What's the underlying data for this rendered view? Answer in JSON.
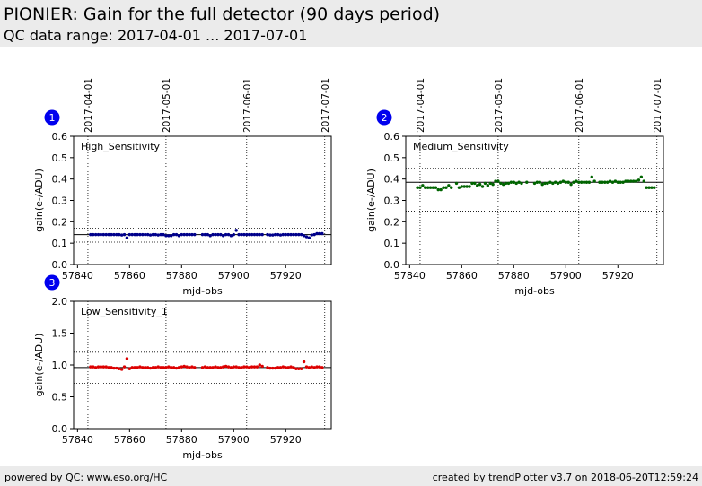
{
  "header": {
    "title": "PIONIER: Gain for the full detector (90 days period)",
    "subtitle": "QC data range: 2017-04-01 ... 2017-07-01"
  },
  "footer": {
    "left": "powered by QC: www.eso.org/HC",
    "right": "created by trendPlotter v3.7 on 2018-06-20T12:59:24"
  },
  "colors": {
    "badge": "#0000ee",
    "high": "#00008b",
    "medium": "#006400",
    "low": "#dd0000"
  },
  "chart_data": [
    {
      "type": "scatter",
      "badge": "1",
      "label": "High_Sensitivity",
      "xlabel": "mjd-obs",
      "ylabel": "gain(e-/ADU)",
      "xlim": [
        57838.5,
        57937.5
      ],
      "ylim": [
        0.0,
        0.6
      ],
      "xticks": [
        57840,
        57860,
        57880,
        57900,
        57920
      ],
      "yticks": [
        0.0,
        0.1,
        0.2,
        0.3,
        0.4,
        0.5,
        0.6
      ],
      "ytick_labels": [
        "0.0",
        "0.1",
        "0.2",
        "0.3",
        "0.4",
        "0.5",
        "0.6"
      ],
      "top_axis": [
        {
          "x": 57844,
          "label": "2017-04-01"
        },
        {
          "x": 57874,
          "label": "2017-05-01"
        },
        {
          "x": 57905,
          "label": "2017-06-01"
        },
        {
          "x": 57935,
          "label": "2017-07-01"
        }
      ],
      "reference_line": 0.14,
      "threshold_lines": [
        0.105,
        0.17
      ],
      "grid": "vertical dotted at month boundaries",
      "color_key": "high",
      "series": [
        {
          "x": [
            57845,
            57846,
            57847,
            57848,
            57849,
            57850,
            57851,
            57852,
            57853,
            57854,
            57855,
            57856,
            57857,
            57858,
            57859,
            57860,
            57861,
            57862,
            57863,
            57864,
            57865,
            57866,
            57867,
            57868,
            57869,
            57870,
            57871,
            57872,
            57873,
            57874,
            57875,
            57876,
            57877,
            57878,
            57879,
            57880,
            57881,
            57882,
            57883,
            57884,
            57885,
            57888,
            57889,
            57890,
            57891,
            57892,
            57893,
            57894,
            57895,
            57896,
            57897,
            57898,
            57899,
            57900,
            57901,
            57902,
            57903,
            57904,
            57905,
            57906,
            57907,
            57908,
            57909,
            57910,
            57911,
            57913,
            57914,
            57915,
            57916,
            57917,
            57918,
            57919,
            57920,
            57921,
            57922,
            57923,
            57924,
            57925,
            57926,
            57927,
            57928,
            57929,
            57930,
            57931,
            57932,
            57933,
            57934
          ],
          "y": [
            0.14,
            0.14,
            0.14,
            0.14,
            0.14,
            0.14,
            0.14,
            0.14,
            0.14,
            0.14,
            0.14,
            0.14,
            0.138,
            0.14,
            0.125,
            0.14,
            0.14,
            0.14,
            0.14,
            0.14,
            0.14,
            0.14,
            0.14,
            0.138,
            0.14,
            0.14,
            0.138,
            0.14,
            0.14,
            0.135,
            0.135,
            0.135,
            0.14,
            0.14,
            0.135,
            0.14,
            0.14,
            0.14,
            0.14,
            0.14,
            0.14,
            0.14,
            0.14,
            0.14,
            0.135,
            0.14,
            0.14,
            0.14,
            0.14,
            0.135,
            0.14,
            0.14,
            0.135,
            0.14,
            0.16,
            0.14,
            0.14,
            0.14,
            0.14,
            0.14,
            0.14,
            0.14,
            0.14,
            0.14,
            0.14,
            0.14,
            0.138,
            0.138,
            0.14,
            0.14,
            0.138,
            0.14,
            0.14,
            0.14,
            0.14,
            0.14,
            0.14,
            0.14,
            0.14,
            0.135,
            0.13,
            0.125,
            0.138,
            0.14,
            0.145,
            0.145,
            0.145
          ]
        }
      ]
    },
    {
      "type": "scatter",
      "badge": "2",
      "label": "Medium_Sensitivity",
      "xlabel": "mjd-obs",
      "ylabel": "gain(e-/ADU)",
      "xlim": [
        57838.5,
        57937.5
      ],
      "ylim": [
        0.0,
        0.6
      ],
      "xticks": [
        57840,
        57860,
        57880,
        57900,
        57920
      ],
      "yticks": [
        0.0,
        0.1,
        0.2,
        0.3,
        0.4,
        0.5,
        0.6
      ],
      "ytick_labels": [
        "0.0",
        "0.1",
        "0.2",
        "0.3",
        "0.4",
        "0.5",
        "0.6"
      ],
      "top_axis": [
        {
          "x": 57844,
          "label": "2017-04-01"
        },
        {
          "x": 57874,
          "label": "2017-05-01"
        },
        {
          "x": 57905,
          "label": "2017-06-01"
        },
        {
          "x": 57935,
          "label": "2017-07-01"
        }
      ],
      "reference_line": 0.385,
      "threshold_lines": [
        0.25,
        0.45
      ],
      "grid": "vertical dotted at month boundaries",
      "color_key": "medium",
      "series": [
        {
          "x": [
            57843,
            57844,
            57845,
            57846,
            57847,
            57848,
            57849,
            57850,
            57851,
            57852,
            57853,
            57854,
            57855,
            57856,
            57858,
            57859,
            57860,
            57861,
            57862,
            57863,
            57864,
            57865,
            57866,
            57867,
            57868,
            57869,
            57870,
            57871,
            57872,
            57873,
            57874,
            57875,
            57876,
            57877,
            57878,
            57879,
            57880,
            57881,
            57882,
            57883,
            57885,
            57888,
            57889,
            57890,
            57891,
            57892,
            57893,
            57894,
            57895,
            57896,
            57897,
            57898,
            57899,
            57900,
            57901,
            57902,
            57903,
            57904,
            57905,
            57906,
            57907,
            57908,
            57909,
            57910,
            57911,
            57913,
            57914,
            57915,
            57916,
            57917,
            57918,
            57919,
            57920,
            57921,
            57922,
            57923,
            57924,
            57925,
            57926,
            57927,
            57928,
            57929,
            57930,
            57931,
            57932,
            57933,
            57934
          ],
          "y": [
            0.36,
            0.36,
            0.37,
            0.36,
            0.36,
            0.36,
            0.36,
            0.36,
            0.35,
            0.35,
            0.36,
            0.36,
            0.37,
            0.36,
            0.38,
            0.36,
            0.365,
            0.365,
            0.365,
            0.365,
            0.38,
            0.38,
            0.37,
            0.375,
            0.365,
            0.38,
            0.37,
            0.38,
            0.375,
            0.39,
            0.39,
            0.38,
            0.375,
            0.38,
            0.38,
            0.385,
            0.385,
            0.38,
            0.385,
            0.38,
            0.385,
            0.38,
            0.385,
            0.385,
            0.375,
            0.38,
            0.38,
            0.385,
            0.38,
            0.385,
            0.38,
            0.385,
            0.39,
            0.385,
            0.385,
            0.375,
            0.385,
            0.39,
            0.385,
            0.385,
            0.385,
            0.385,
            0.385,
            0.41,
            0.39,
            0.385,
            0.385,
            0.385,
            0.385,
            0.39,
            0.385,
            0.39,
            0.385,
            0.385,
            0.385,
            0.39,
            0.39,
            0.39,
            0.39,
            0.39,
            0.395,
            0.41,
            0.39,
            0.36,
            0.36,
            0.36,
            0.36
          ]
        }
      ]
    },
    {
      "type": "scatter",
      "badge": "3",
      "label": "Low_Sensitivity_1",
      "xlabel": "mjd-obs",
      "ylabel": "gain(e-/ADU)",
      "xlim": [
        57838.5,
        57937.5
      ],
      "ylim": [
        0.0,
        2.0
      ],
      "xticks": [
        57840,
        57860,
        57880,
        57900,
        57920
      ],
      "yticks": [
        0.0,
        0.5,
        1.0,
        1.5,
        2.0
      ],
      "ytick_labels": [
        "0.0",
        "0.5",
        "1.0",
        "1.5",
        "2.0"
      ],
      "top_axis": [
        {
          "x": 57844,
          "label": "2017-04-01"
        },
        {
          "x": 57874,
          "label": "2017-05-01"
        },
        {
          "x": 57905,
          "label": "2017-06-01"
        },
        {
          "x": 57935,
          "label": "2017-07-01"
        }
      ],
      "reference_line": 0.96,
      "threshold_lines": [
        0.71,
        1.2
      ],
      "grid": "vertical dotted at month boundaries",
      "color_key": "low",
      "series": [
        {
          "x": [
            57845,
            57846,
            57847,
            57848,
            57849,
            57850,
            57851,
            57852,
            57853,
            57854,
            57855,
            57856,
            57857,
            57858,
            57859,
            57860,
            57861,
            57862,
            57863,
            57864,
            57865,
            57866,
            57867,
            57868,
            57869,
            57870,
            57871,
            57872,
            57873,
            57874,
            57875,
            57876,
            57877,
            57878,
            57879,
            57880,
            57881,
            57882,
            57883,
            57884,
            57885,
            57888,
            57889,
            57890,
            57891,
            57892,
            57893,
            57894,
            57895,
            57896,
            57897,
            57898,
            57899,
            57900,
            57901,
            57902,
            57903,
            57904,
            57905,
            57906,
            57907,
            57908,
            57909,
            57910,
            57911,
            57913,
            57914,
            57915,
            57916,
            57917,
            57918,
            57919,
            57920,
            57921,
            57922,
            57923,
            57924,
            57925,
            57926,
            57927,
            57928,
            57929,
            57930,
            57931,
            57932,
            57933,
            57934
          ],
          "y": [
            0.97,
            0.97,
            0.96,
            0.97,
            0.97,
            0.97,
            0.97,
            0.96,
            0.96,
            0.95,
            0.95,
            0.94,
            0.93,
            0.97,
            1.1,
            0.94,
            0.96,
            0.96,
            0.96,
            0.97,
            0.96,
            0.96,
            0.96,
            0.95,
            0.96,
            0.96,
            0.97,
            0.96,
            0.96,
            0.96,
            0.97,
            0.96,
            0.96,
            0.95,
            0.96,
            0.97,
            0.98,
            0.97,
            0.96,
            0.97,
            0.96,
            0.96,
            0.97,
            0.96,
            0.96,
            0.96,
            0.97,
            0.96,
            0.96,
            0.97,
            0.98,
            0.97,
            0.96,
            0.97,
            0.97,
            0.96,
            0.96,
            0.97,
            0.97,
            0.96,
            0.97,
            0.97,
            0.97,
            1.0,
            0.98,
            0.96,
            0.95,
            0.95,
            0.95,
            0.96,
            0.96,
            0.97,
            0.96,
            0.96,
            0.97,
            0.96,
            0.94,
            0.94,
            0.94,
            1.05,
            0.97,
            0.96,
            0.97,
            0.96,
            0.97,
            0.97,
            0.96
          ]
        }
      ]
    }
  ]
}
